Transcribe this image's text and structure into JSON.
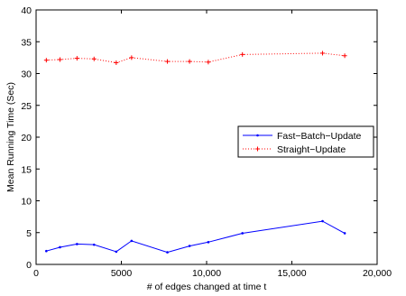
{
  "chart_data": {
    "type": "line",
    "title": "",
    "xlabel": "# of edges changed at time t",
    "ylabel": "Mean Running Time (Sec)",
    "xlim": [
      0,
      20000
    ],
    "ylim": [
      0,
      40
    ],
    "x_ticks": [
      0,
      5000,
      10000,
      15000,
      20000
    ],
    "x_tick_labels": [
      "0",
      "5000",
      "10,000",
      "15,000",
      "20,000"
    ],
    "y_ticks": [
      0,
      5,
      10,
      15,
      20,
      25,
      30,
      35,
      40
    ],
    "y_tick_labels": [
      "0",
      "5",
      "10",
      "15",
      "20",
      "25",
      "30",
      "35",
      "40"
    ],
    "grid": false,
    "legend_position": "right",
    "series": [
      {
        "name": "Fast−Batch−Update",
        "color": "#0000ff",
        "line_style": "solid",
        "marker": "dot",
        "points": [
          [
            600,
            2.1
          ],
          [
            1400,
            2.7
          ],
          [
            2400,
            3.2
          ],
          [
            3400,
            3.1
          ],
          [
            4700,
            2.0
          ],
          [
            5600,
            3.7
          ],
          [
            7700,
            1.9
          ],
          [
            9000,
            2.9
          ],
          [
            10100,
            3.5
          ],
          [
            12100,
            4.9
          ],
          [
            16800,
            6.8
          ],
          [
            18100,
            4.9
          ]
        ]
      },
      {
        "name": "Straight−Update",
        "color": "#ff0000",
        "line_style": "dotted",
        "marker": "plus",
        "points": [
          [
            600,
            32.1
          ],
          [
            1400,
            32.2
          ],
          [
            2400,
            32.4
          ],
          [
            3400,
            32.3
          ],
          [
            4700,
            31.7
          ],
          [
            5600,
            32.5
          ],
          [
            7700,
            31.9
          ],
          [
            9000,
            31.9
          ],
          [
            10100,
            31.8
          ],
          [
            12100,
            33.0
          ],
          [
            16800,
            33.2
          ],
          [
            18100,
            32.8
          ]
        ]
      }
    ]
  }
}
